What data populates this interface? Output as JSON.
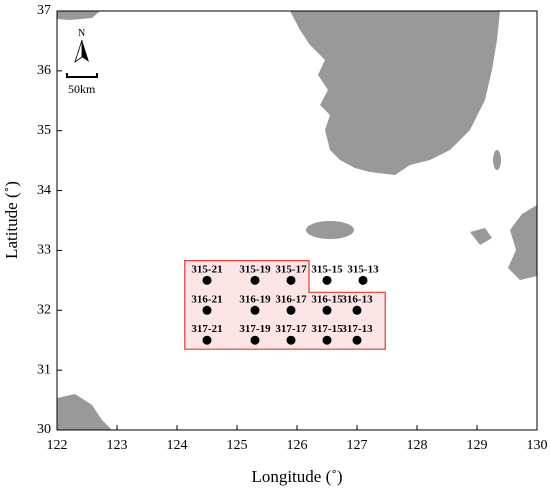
{
  "map_data": {
    "xlabel": "Longitude (˚)",
    "ylabel": "Latitude (˚)",
    "xlim": [
      122,
      130
    ],
    "ylim": [
      30,
      37
    ],
    "xticks": [
      122,
      123,
      124,
      125,
      126,
      127,
      128,
      129,
      130
    ],
    "yticks": [
      30,
      31,
      32,
      33,
      34,
      35,
      36,
      37
    ],
    "north_label": "N",
    "scale_label": "50km",
    "study_area": {
      "color": "#e53935",
      "lon": [
        124.13,
        126.2,
        126.2,
        127.47,
        127.47,
        124.13
      ],
      "lat": [
        32.83,
        32.83,
        32.3,
        32.3,
        31.35,
        31.35
      ]
    },
    "stations": [
      {
        "name": "315-21",
        "lon": 124.5,
        "lat": 32.5
      },
      {
        "name": "315-19",
        "lon": 125.3,
        "lat": 32.5
      },
      {
        "name": "315-17",
        "lon": 125.9,
        "lat": 32.5
      },
      {
        "name": "315-15",
        "lon": 126.5,
        "lat": 32.5
      },
      {
        "name": "315-13",
        "lon": 127.1,
        "lat": 32.5
      },
      {
        "name": "316-21",
        "lon": 124.5,
        "lat": 32.0
      },
      {
        "name": "316-19",
        "lon": 125.3,
        "lat": 32.0
      },
      {
        "name": "316-17",
        "lon": 125.9,
        "lat": 32.0
      },
      {
        "name": "316-15",
        "lon": 126.5,
        "lat": 32.0
      },
      {
        "name": "316-13",
        "lon": 127.0,
        "lat": 32.0
      },
      {
        "name": "317-21",
        "lon": 124.5,
        "lat": 31.5
      },
      {
        "name": "317-19",
        "lon": 125.3,
        "lat": 31.5
      },
      {
        "name": "317-17",
        "lon": 125.9,
        "lat": 31.5
      },
      {
        "name": "317-15",
        "lon": 126.5,
        "lat": 31.5
      },
      {
        "name": "317-13",
        "lon": 127.0,
        "lat": 31.5
      }
    ]
  }
}
